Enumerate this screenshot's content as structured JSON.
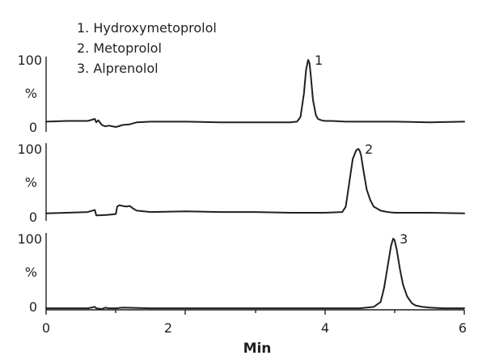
{
  "chart_data": {
    "type": "line",
    "legend": [
      "1. Hydroxymetoprolol",
      "2. Metoprolol",
      "3. Alprenolol"
    ],
    "legend_placement": "top-left",
    "xlabel": "Min",
    "x_ticks": [
      "0",
      "2",
      "4",
      "6"
    ],
    "xlim": [
      0,
      6
    ],
    "y_ticks": [
      "100",
      "%",
      "0"
    ],
    "ylim": [
      0,
      100
    ],
    "grid": false,
    "panels": [
      {
        "peak_label": "1",
        "series": [
          {
            "x": [
              0,
              0.3,
              0.6,
              0.7,
              0.72,
              0.75,
              0.8,
              0.85,
              0.9,
              1.0,
              1.1,
              1.2,
              1.3,
              1.5,
              2.0,
              2.5,
              3.0,
              3.3,
              3.5,
              3.6,
              3.65,
              3.7,
              3.73,
              3.76,
              3.78,
              3.8,
              3.83,
              3.87,
              3.9,
              3.95,
              4.0,
              4.1,
              4.3,
              4.6,
              5.0,
              5.5,
              6.0
            ],
            "y": [
              8,
              9,
              9,
              12,
              7,
              10,
              3,
              1,
              2,
              0,
              3,
              4,
              7,
              8,
              8,
              7,
              7,
              7,
              7,
              8,
              15,
              50,
              85,
              100,
              95,
              75,
              40,
              18,
              12,
              10,
              9,
              9,
              8,
              8,
              8,
              7,
              8
            ]
          }
        ]
      },
      {
        "peak_label": "2",
        "series": [
          {
            "x": [
              0,
              0.3,
              0.6,
              0.7,
              0.72,
              0.75,
              0.9,
              1.0,
              1.02,
              1.05,
              1.1,
              1.15,
              1.2,
              1.25,
              1.3,
              1.5,
              2.0,
              2.5,
              3.0,
              3.5,
              4.0,
              4.25,
              4.3,
              4.35,
              4.4,
              4.45,
              4.48,
              4.5,
              4.52,
              4.55,
              4.6,
              4.65,
              4.7,
              4.8,
              4.9,
              5.0,
              5.5,
              6.0
            ],
            "y": [
              5,
              6,
              7,
              10,
              2,
              2,
              3,
              4,
              15,
              17,
              16,
              15,
              16,
              12,
              9,
              7,
              8,
              7,
              7,
              6,
              6,
              7,
              15,
              50,
              85,
              98,
              100,
              97,
              90,
              70,
              40,
              25,
              15,
              9,
              7,
              6,
              6,
              5
            ]
          }
        ]
      },
      {
        "peak_label": "3",
        "series": [
          {
            "x": [
              0,
              0.3,
              0.6,
              0.7,
              0.72,
              0.8,
              0.85,
              0.9,
              1.0,
              1.1,
              1.5,
              2.0,
              3.0,
              4.0,
              4.5,
              4.7,
              4.8,
              4.85,
              4.9,
              4.95,
              4.98,
              5.0,
              5.03,
              5.08,
              5.12,
              5.18,
              5.25,
              5.3,
              5.4,
              5.5,
              5.7,
              6.0
            ],
            "y": [
              1,
              1,
              1,
              3,
              1,
              0,
              2,
              1,
              1,
              2,
              1,
              1,
              1,
              1,
              1,
              3,
              10,
              30,
              60,
              90,
              100,
              98,
              85,
              55,
              35,
              18,
              8,
              5,
              3,
              2,
              1,
              1
            ]
          }
        ]
      }
    ]
  }
}
